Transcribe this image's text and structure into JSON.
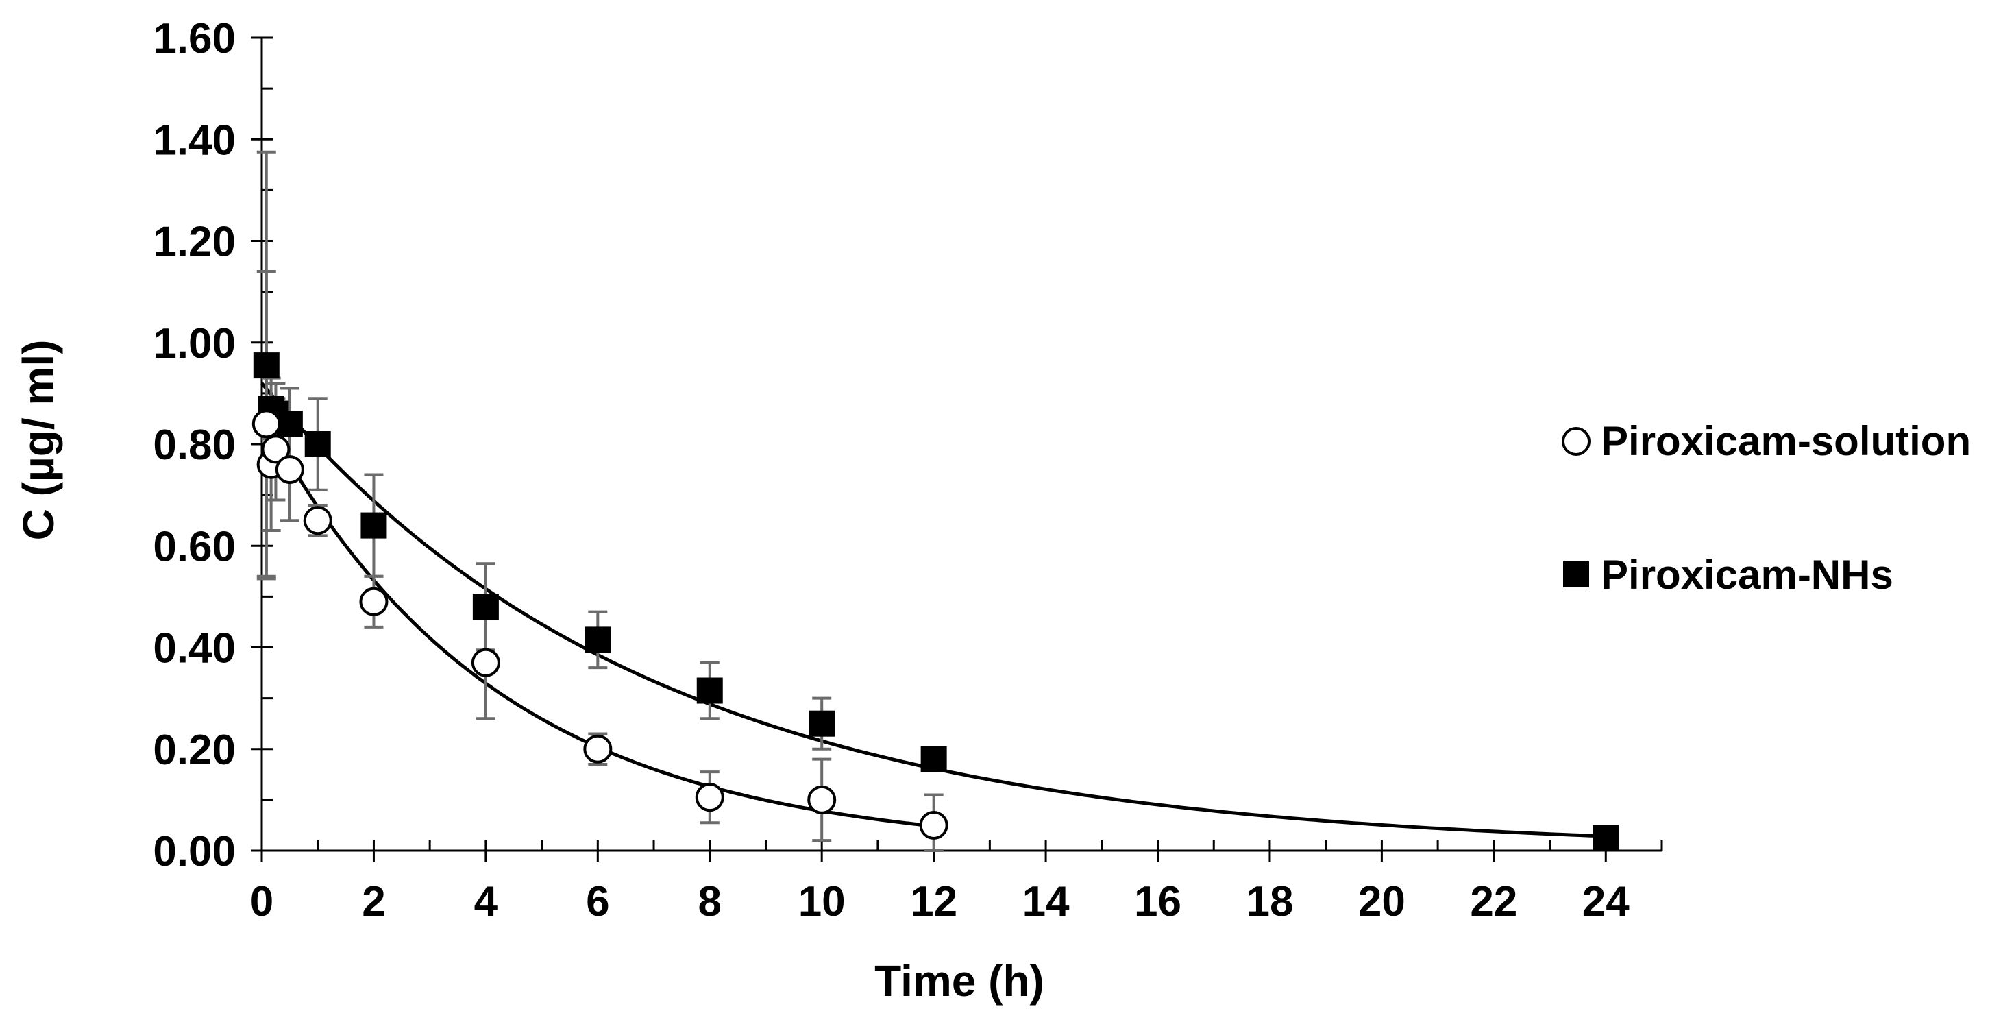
{
  "chart_data": {
    "type": "scatter",
    "title": "",
    "xlabel": "Time (h)",
    "ylabel": "C (µg/ ml)",
    "xlim": [
      0,
      25
    ],
    "ylim": [
      0,
      1.6
    ],
    "x_ticks": [
      "0",
      "2",
      "4",
      "6",
      "8",
      "10",
      "12",
      "14",
      "16",
      "18",
      "20",
      "22",
      "24"
    ],
    "y_ticks": [
      "0.00",
      "0.20",
      "0.40",
      "0.60",
      "0.80",
      "1.00",
      "1.20",
      "1.40",
      "1.60"
    ],
    "legend_position": "right",
    "series": [
      {
        "name": "Piroxicam-solution",
        "marker": "open-circle",
        "x": [
          0.083,
          0.167,
          0.25,
          0.5,
          1,
          2,
          4,
          6,
          8,
          10,
          12
        ],
        "y": [
          0.84,
          0.76,
          0.79,
          0.75,
          0.65,
          0.49,
          0.37,
          0.2,
          0.105,
          0.1,
          0.05
        ],
        "error": [
          0.3,
          0.13,
          0.1,
          0.1,
          0.03,
          0.05,
          0.11,
          0.03,
          0.05,
          0.08,
          0.06
        ],
        "fit": {
          "c0": 0.86,
          "k": 0.24,
          "x_end": 12
        }
      },
      {
        "name": "Piroxicam-NHs",
        "marker": "filled-square",
        "x": [
          0.083,
          0.167,
          0.25,
          0.5,
          1,
          2,
          4,
          6,
          8,
          10,
          12,
          24
        ],
        "y": [
          0.955,
          0.87,
          0.86,
          0.84,
          0.8,
          0.64,
          0.48,
          0.415,
          0.315,
          0.25,
          0.18,
          0.025
        ],
        "error": [
          0.42,
          0.06,
          0.06,
          0.07,
          0.09,
          0.1,
          0.085,
          0.055,
          0.055,
          0.05,
          0.0,
          0.0
        ],
        "fit": {
          "c0": 0.92,
          "k": 0.145,
          "x_end": 24
        }
      }
    ]
  }
}
